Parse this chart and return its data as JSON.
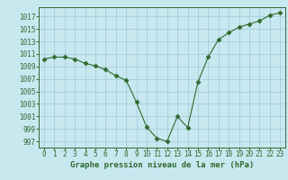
{
  "x": [
    0,
    1,
    2,
    3,
    4,
    5,
    6,
    7,
    8,
    9,
    10,
    11,
    12,
    13,
    14,
    15,
    16,
    17,
    18,
    19,
    20,
    21,
    22,
    23
  ],
  "y": [
    1010.2,
    1010.5,
    1010.5,
    1010.2,
    1009.5,
    1009.1,
    1008.5,
    1007.5,
    1006.8,
    1003.3,
    999.3,
    997.5,
    997.0,
    1001.0,
    999.2,
    1006.5,
    1010.5,
    1013.3,
    1014.4,
    1015.3,
    1015.8,
    1016.3,
    1017.2,
    1017.6
  ],
  "line_color": "#2d6a2d",
  "marker": "D",
  "marker_size": 2.5,
  "bg_color": "#c8e8f0",
  "grid_color": "#a0c8d8",
  "xlabel": "Graphe pression niveau de la mer (hPa)",
  "ylabel_ticks": [
    997,
    999,
    1001,
    1003,
    1005,
    1007,
    1009,
    1011,
    1013,
    1015,
    1017
  ],
  "ylim": [
    996,
    1018.5
  ],
  "xlim": [
    -0.5,
    23.5
  ],
  "tick_label_color": "#2d6a2d",
  "xlabel_color": "#2d6a2d",
  "xlabel_fontsize": 6.5,
  "tick_fontsize": 5.5
}
